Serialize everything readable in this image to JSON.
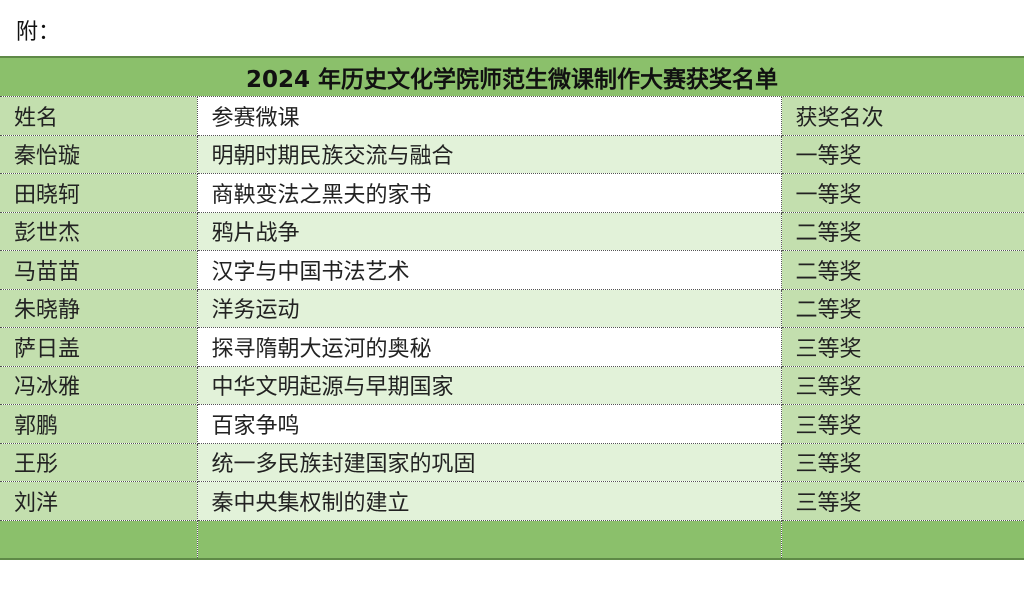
{
  "note": "附：",
  "title": "2024 年历史文化学院师范生微课制作大赛获奖名单",
  "headers": [
    "姓名",
    "参赛微课",
    "获奖名次"
  ],
  "rows": [
    [
      "秦怡璇",
      "明朝时期民族交流与融合",
      "一等奖"
    ],
    [
      "田晓轲",
      "商鞅变法之黑夫的家书",
      "一等奖"
    ],
    [
      "彭世杰",
      "鸦片战争",
      "二等奖"
    ],
    [
      "马苗苗",
      "汉字与中国书法艺术",
      "二等奖"
    ],
    [
      "朱晓静",
      "洋务运动",
      "二等奖"
    ],
    [
      "萨日盖",
      "探寻隋朝大运河的奥秘",
      "三等奖"
    ],
    [
      "冯冰雅",
      "中华文明起源与早期国家",
      "三等奖"
    ],
    [
      "郭鹏",
      "百家争鸣",
      "三等奖"
    ],
    [
      "王彤",
      "统一多民族封建国家的巩固",
      "三等奖"
    ],
    [
      "刘洋",
      "秦中央集权制的建立",
      "三等奖"
    ]
  ],
  "colors": {
    "header": "#8bc06b",
    "side": "#c3dfae",
    "band": "#e2f2d9"
  }
}
